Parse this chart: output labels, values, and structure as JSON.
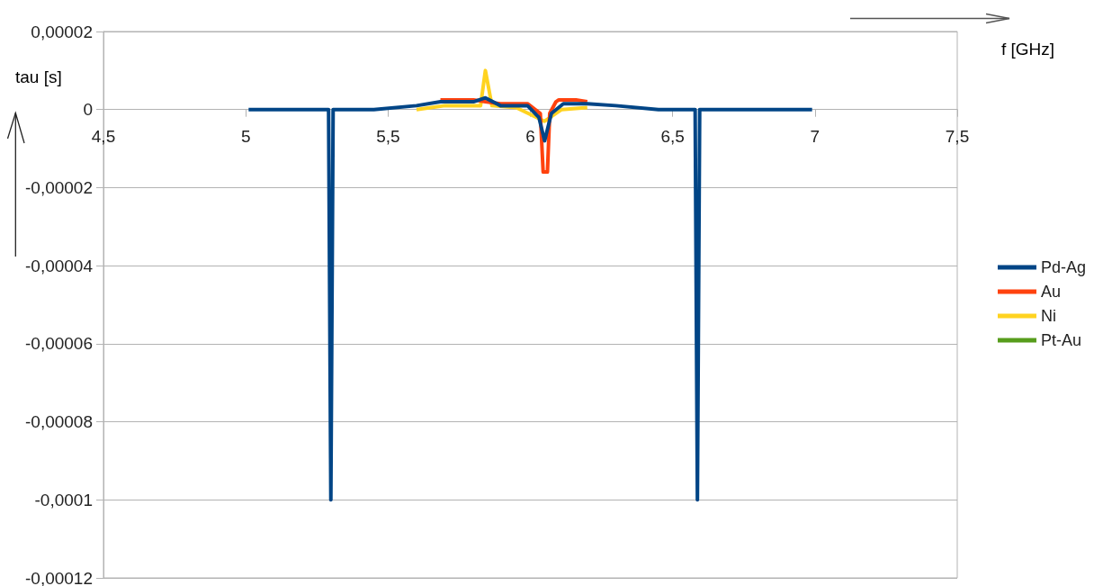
{
  "chart_data": {
    "type": "line",
    "xlabel": "f [GHz]",
    "ylabel": "tau [s]",
    "xlim": [
      4.5,
      7.5
    ],
    "xticks": [
      {
        "value": 4.5,
        "label": "4,5"
      },
      5,
      {
        "value": 5.5,
        "label": "5,5"
      },
      6,
      {
        "value": 6.5,
        "label": "6,5"
      },
      7,
      {
        "value": 7.5,
        "label": "7,5"
      }
    ],
    "ylim": [
      -0.00012,
      2e-05
    ],
    "yticks": [
      {
        "value": -0.00012,
        "label": "-0,00012"
      },
      {
        "value": -0.0001,
        "label": "-0,0001"
      },
      {
        "value": -8e-05,
        "label": "-0,00008"
      },
      {
        "value": -6e-05,
        "label": "-0,00006"
      },
      {
        "value": -4e-05,
        "label": "-0,00004"
      },
      {
        "value": -2e-05,
        "label": "-0,00002"
      },
      0,
      {
        "value": 2e-05,
        "label": "0,00002"
      }
    ],
    "grid": "y",
    "legend": "right",
    "marker": "none",
    "series": [
      {
        "name": "Pd-Ag",
        "color": "#004586",
        "x": [
          5.01,
          5.291,
          5.299,
          5.307,
          5.45,
          5.6,
          5.684,
          5.8,
          5.842,
          5.895,
          5.99,
          6.03,
          6.05,
          6.074,
          6.116,
          6.2,
          6.3,
          6.45,
          6.579,
          6.587,
          6.595,
          6.99
        ],
        "values": [
          0,
          0,
          -0.0001,
          0,
          0,
          1e-06,
          2e-06,
          2e-06,
          3e-06,
          1e-06,
          1e-06,
          -2e-06,
          -8e-06,
          -1e-06,
          1.5e-06,
          1.5e-06,
          1e-06,
          0,
          0,
          -0.0001,
          0,
          0
        ]
      },
      {
        "name": "Au",
        "color": "#ff420e",
        "x": [
          5.684,
          5.8,
          5.842,
          5.895,
          5.99,
          6.035,
          6.045,
          6.06,
          6.068,
          6.09,
          6.1,
          6.16,
          6.2
        ],
        "values": [
          2.5e-06,
          2.5e-06,
          2e-06,
          1.5e-06,
          1.5e-06,
          -1e-06,
          -1.6e-05,
          -1.6e-05,
          -1e-06,
          2e-06,
          2.5e-06,
          2.5e-06,
          2e-06
        ]
      },
      {
        "name": "Ni",
        "color": "#ffd320",
        "x": [
          5.6,
          5.7,
          5.8,
          5.825,
          5.842,
          5.865,
          5.95,
          6.05,
          6.11,
          6.2
        ],
        "values": [
          0,
          1e-06,
          1e-06,
          1e-06,
          1e-05,
          1e-06,
          5e-07,
          -3e-06,
          0,
          5e-07
        ]
      },
      {
        "name": "Pt-Au",
        "color": "#579d1c"
      }
    ]
  }
}
